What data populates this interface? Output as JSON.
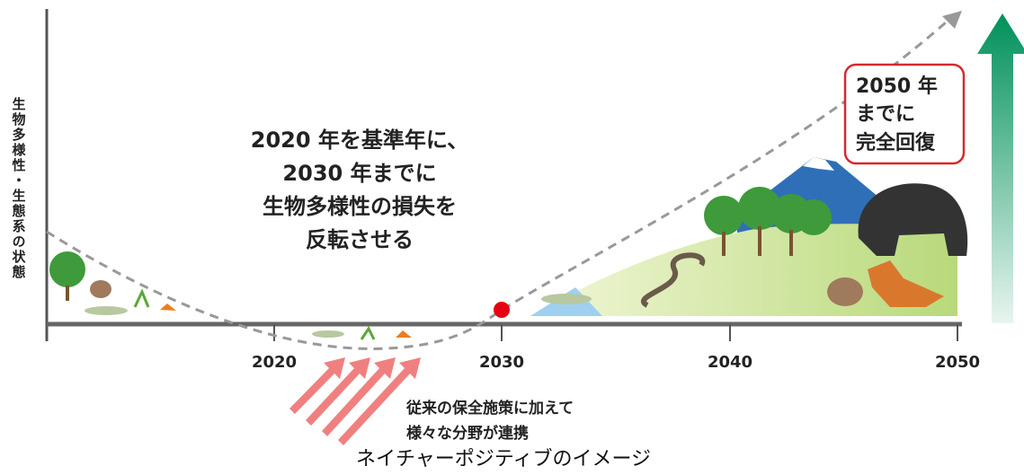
{
  "y_axis_label": "生物多様性・生態系の状態",
  "x_axis_labels": [
    "2020",
    "2030",
    "2040",
    "2050"
  ],
  "message": [
    "2020 年を基準年に、",
    "2030 年までに",
    "生物多様性の損失を",
    "反転させる"
  ],
  "callout": [
    "2050 年",
    "までに",
    "完全回復"
  ],
  "note": [
    "従来の保全施策に加えて",
    "様々な分野が連携"
  ],
  "caption": "ネイチャーポジティブのイメージ"
}
